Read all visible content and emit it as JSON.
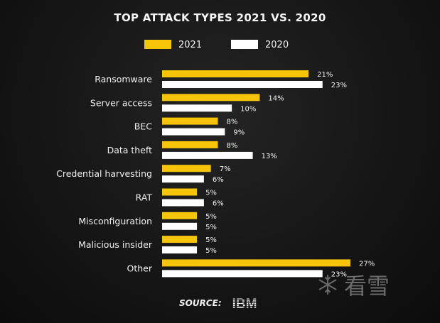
{
  "chart_data": {
    "type": "bar",
    "orientation": "horizontal",
    "title": "TOP ATTACK TYPES 2021 VS. 2020",
    "categories": [
      "Ransomware",
      "Server access",
      "BEC",
      "Data theft",
      "Credential harvesting",
      "RAT",
      "Misconfiguration",
      "Malicious insider",
      "Other"
    ],
    "series": [
      {
        "name": "2021",
        "color": "#f6c50a",
        "values": [
          21,
          14,
          8,
          8,
          7,
          5,
          5,
          5,
          27
        ],
        "labels": [
          "21%",
          "14%",
          "8%",
          "8%",
          "7%",
          "5%",
          "5%",
          "5%",
          "27%"
        ]
      },
      {
        "name": "2020",
        "color": "#ffffff",
        "values": [
          23,
          10,
          9,
          13,
          6,
          6,
          5,
          5,
          23
        ],
        "labels": [
          "23%",
          "10%",
          "9%",
          "13%",
          "6%",
          "6%",
          "5%",
          "5%",
          "23%"
        ]
      }
    ],
    "xlim": [
      0,
      27
    ],
    "grid": false,
    "legend": "top-center"
  },
  "source": {
    "label": "SOURCE:",
    "logo": "IBM"
  },
  "watermark": {
    "text": "看雪",
    "icon": "snowflake-icon"
  }
}
